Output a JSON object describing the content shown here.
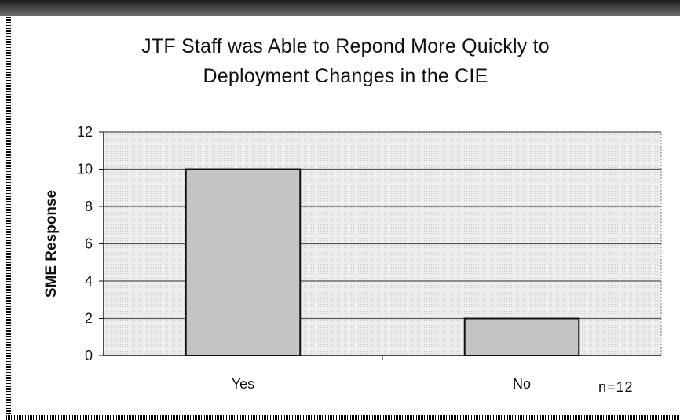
{
  "chart_data": {
    "type": "bar",
    "title": "JTF Staff was Able to Repond More Quickly to\nDeployment Changes in the CIE",
    "ylabel": "SME Response",
    "xlabel": "",
    "categories": [
      "Yes",
      "No"
    ],
    "values": [
      10,
      2
    ],
    "ylim": [
      0,
      12
    ],
    "yticks": [
      0,
      2,
      4,
      6,
      8,
      10,
      12
    ],
    "grid": true,
    "bar_color": "#c4c4c4",
    "annotation": "n=12"
  }
}
